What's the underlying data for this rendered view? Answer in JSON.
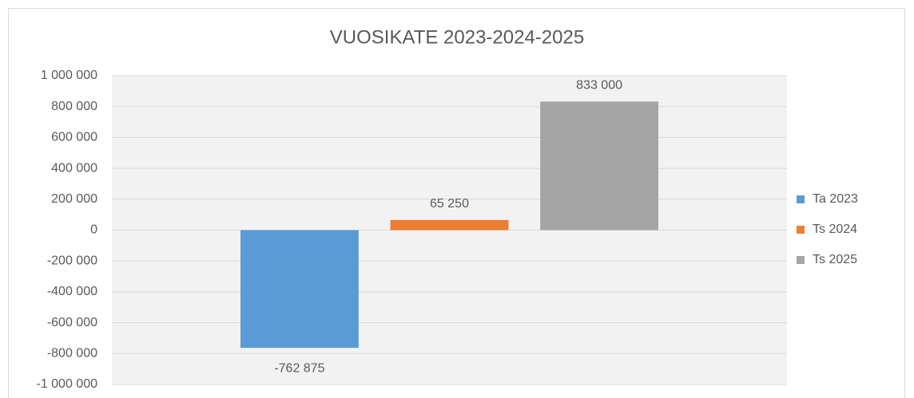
{
  "chart_data": {
    "type": "bar",
    "title": "VUOSIKATE 2023-2024-2025",
    "categories": [
      null
    ],
    "series": [
      {
        "name": "Ta 2023",
        "color": "#5b9bd5",
        "values": [
          -762875
        ],
        "value_labels": [
          "-762 875"
        ]
      },
      {
        "name": "Ts 2024",
        "color": "#ed7d31",
        "values": [
          65250
        ],
        "value_labels": [
          "65 250"
        ]
      },
      {
        "name": "Ts 2025",
        "color": "#a5a5a5",
        "values": [
          833000
        ],
        "value_labels": [
          "833 000"
        ]
      }
    ],
    "ylim": [
      -1000000,
      1000000
    ],
    "yticks": [
      {
        "value": -1000000,
        "label": "-1 000 000"
      },
      {
        "value": -800000,
        "label": "-800 000"
      },
      {
        "value": -600000,
        "label": "-600 000"
      },
      {
        "value": -400000,
        "label": "-400 000"
      },
      {
        "value": -200000,
        "label": "-200 000"
      },
      0,
      {
        "value": 200000,
        "label": "200 000"
      },
      {
        "value": 400000,
        "label": "400 000"
      },
      {
        "value": 600000,
        "label": "600 000"
      },
      {
        "value": 800000,
        "label": "800 000"
      },
      {
        "value": 1000000,
        "label": "1 000 000"
      }
    ],
    "grid": true,
    "legend": "right"
  }
}
